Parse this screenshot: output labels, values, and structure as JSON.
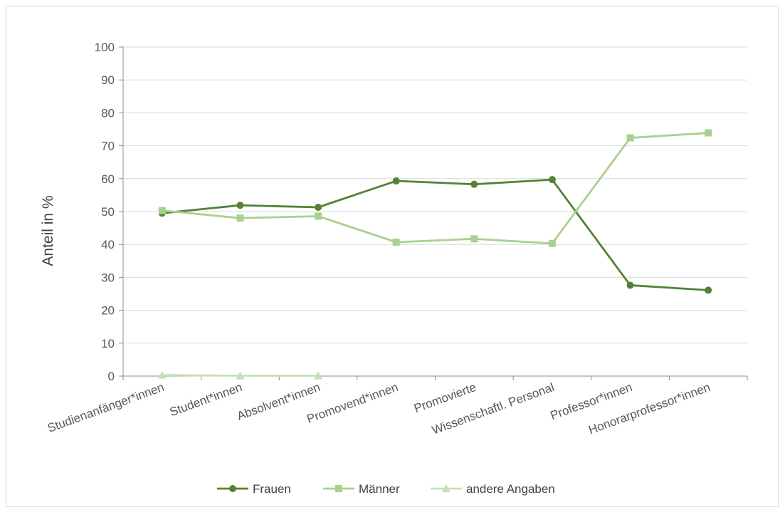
{
  "chart_data": {
    "type": "line",
    "title": "",
    "xlabel": "",
    "ylabel": "Anteil in %",
    "ylim": [
      0,
      100
    ],
    "yticks": [
      0,
      10,
      20,
      30,
      40,
      50,
      60,
      70,
      80,
      90,
      100
    ],
    "grid": true,
    "legend_position": "bottom",
    "categories": [
      "Studienanfänger*innen",
      "Student*innen",
      "Absolvent*innen",
      "Promovend*innen",
      "Promovierte",
      "Wissenschaftl. Personal",
      "Professor*innen",
      "Honorarprofessor*innen"
    ],
    "series": [
      {
        "name": "Frauen",
        "marker": "circle",
        "color": "#548235",
        "values": [
          49.5,
          51.9,
          51.3,
          59.3,
          58.3,
          59.7,
          27.6,
          26.1
        ]
      },
      {
        "name": "Männer",
        "marker": "square",
        "color": "#a9d18e",
        "values": [
          50.3,
          48.0,
          48.6,
          40.7,
          41.7,
          40.3,
          72.4,
          73.9
        ]
      },
      {
        "name": "andere Angaben",
        "marker": "triangle",
        "color": "#c5e0b4",
        "values": [
          0.3,
          0.1,
          0.1,
          null,
          null,
          null,
          null,
          null
        ]
      }
    ]
  }
}
